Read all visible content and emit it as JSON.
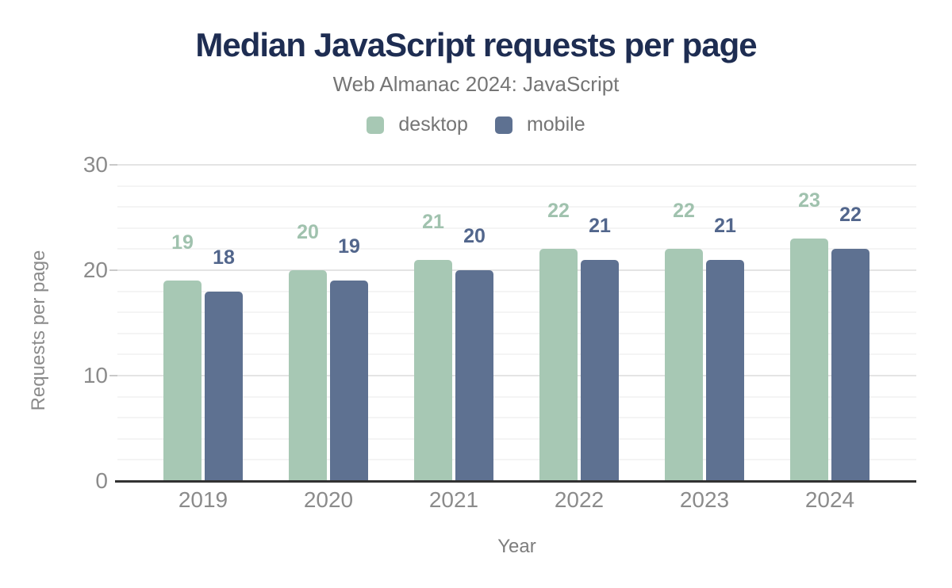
{
  "chart_data": {
    "type": "bar",
    "title": "Median JavaScript requests per page",
    "subtitle": "Web Almanac 2024: JavaScript",
    "categories": [
      "2019",
      "2020",
      "2021",
      "2022",
      "2023",
      "2024"
    ],
    "series": [
      {
        "name": "desktop",
        "color": "#a7c8b4",
        "label_color": "#a0c2ae",
        "values": [
          19,
          20,
          21,
          22,
          22,
          23
        ]
      },
      {
        "name": "mobile",
        "color": "#5e7191",
        "label_color": "#52668c",
        "values": [
          18,
          19,
          20,
          21,
          21,
          22
        ]
      }
    ],
    "xlabel": "Year",
    "ylabel": "Requests per page",
    "ylim": [
      0,
      30
    ],
    "yticks": [
      0,
      10,
      20,
      30
    ],
    "minor_grid_step": 2,
    "grid": true,
    "legend_position": "top",
    "data_labels": true
  },
  "colors": {
    "title": "#1e2d52",
    "subtitle": "#757575",
    "legend_text": "#757575",
    "tick_text": "#8b8b8b",
    "axis_title_text": "#7d7d7d",
    "axis_line": "#323232",
    "grid_major": "#e4e4e4",
    "grid_minor": "#f4f4f4",
    "background": "#ffffff"
  }
}
